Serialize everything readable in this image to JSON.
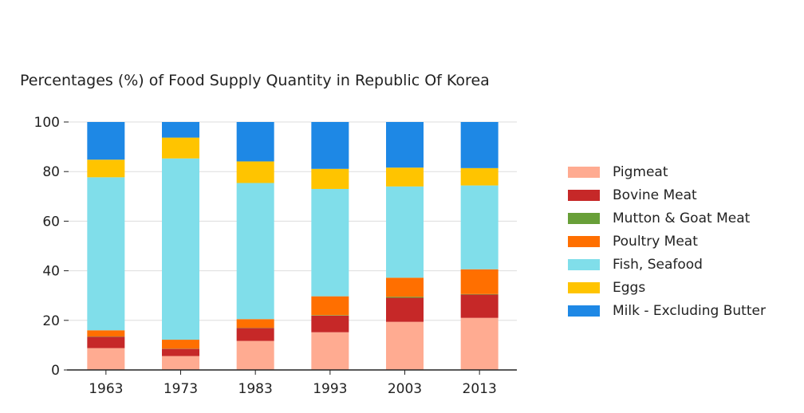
{
  "chart_data": {
    "type": "bar",
    "stacked": true,
    "title": "Percentages (%) of Food Supply Quantity in Republic Of Korea",
    "xlabel": "",
    "ylabel": "",
    "ylim": [
      0,
      100
    ],
    "yticks": [
      0,
      20,
      40,
      60,
      80,
      100
    ],
    "grid": true,
    "legend_position": "right",
    "categories": [
      "1963",
      "1973",
      "1983",
      "1993",
      "2003",
      "2013"
    ],
    "series": [
      {
        "name": "Pigmeat",
        "color": "#ffab91",
        "values": [
          8.8,
          5.6,
          11.7,
          15.2,
          19.4,
          21.0
        ]
      },
      {
        "name": "Bovine Meat",
        "color": "#c62828",
        "values": [
          4.6,
          2.9,
          5.2,
          6.7,
          9.7,
          9.4
        ]
      },
      {
        "name": "Mutton & Goat Meat",
        "color": "#689f38",
        "values": [
          0.1,
          0.1,
          0.1,
          0.2,
          0.4,
          0.2
        ]
      },
      {
        "name": "Poultry Meat",
        "color": "#ff6f00",
        "values": [
          2.5,
          3.6,
          3.5,
          7.6,
          7.7,
          10.0
        ]
      },
      {
        "name": "Fish, Seafood",
        "color": "#80deea",
        "values": [
          61.7,
          73.1,
          54.9,
          43.3,
          36.8,
          33.8
        ]
      },
      {
        "name": "Eggs",
        "color": "#ffc400",
        "values": [
          7.1,
          8.4,
          8.7,
          8.1,
          7.6,
          7.0
        ]
      },
      {
        "name": "Milk - Excluding Butter",
        "color": "#1e88e5",
        "values": [
          15.2,
          6.3,
          15.9,
          18.9,
          18.4,
          18.6
        ]
      }
    ]
  }
}
